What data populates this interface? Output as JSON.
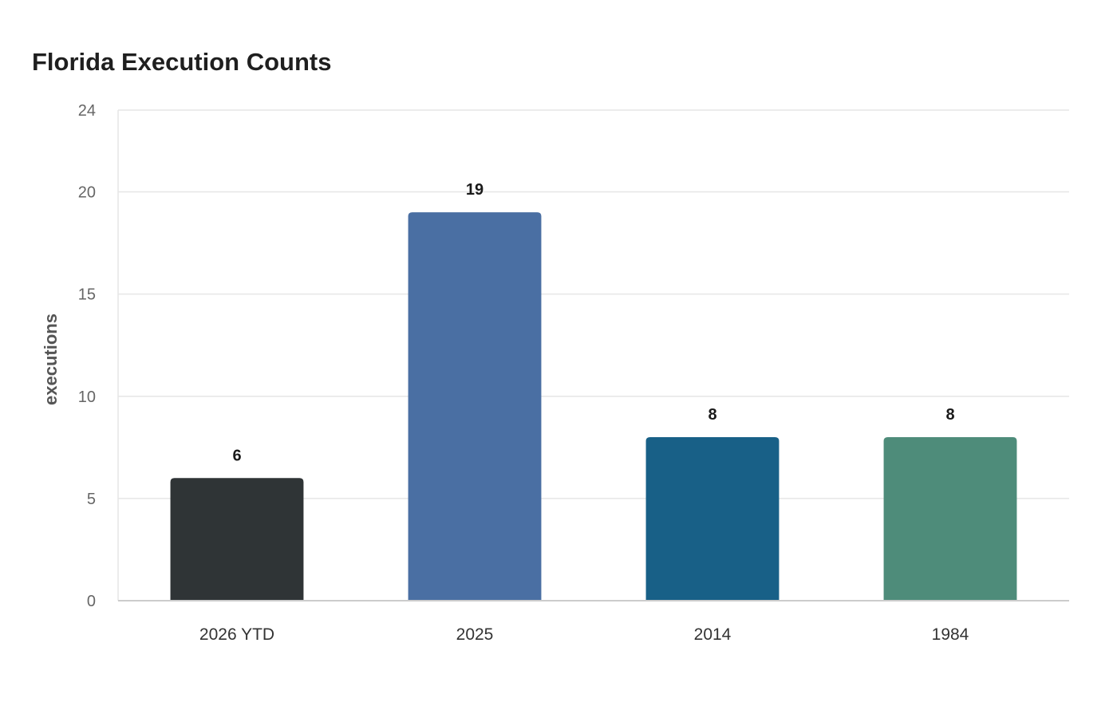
{
  "chart_data": {
    "type": "bar",
    "title": "Florida Execution Counts",
    "xlabel": "",
    "ylabel": "executions",
    "categories": [
      "2026 YTD",
      "2025",
      "2014",
      "1984"
    ],
    "values": [
      6,
      19,
      8,
      8
    ],
    "bar_colors": [
      "#2f3436",
      "#4a6fa3",
      "#186087",
      "#4e8c7a"
    ],
    "ylim": [
      0,
      24
    ],
    "yticks": [
      0,
      5,
      10,
      15,
      20,
      24
    ],
    "grid": true,
    "legend": "none"
  },
  "colors": {
    "grid": "#e6e6e6",
    "axis": "#cccccc"
  }
}
